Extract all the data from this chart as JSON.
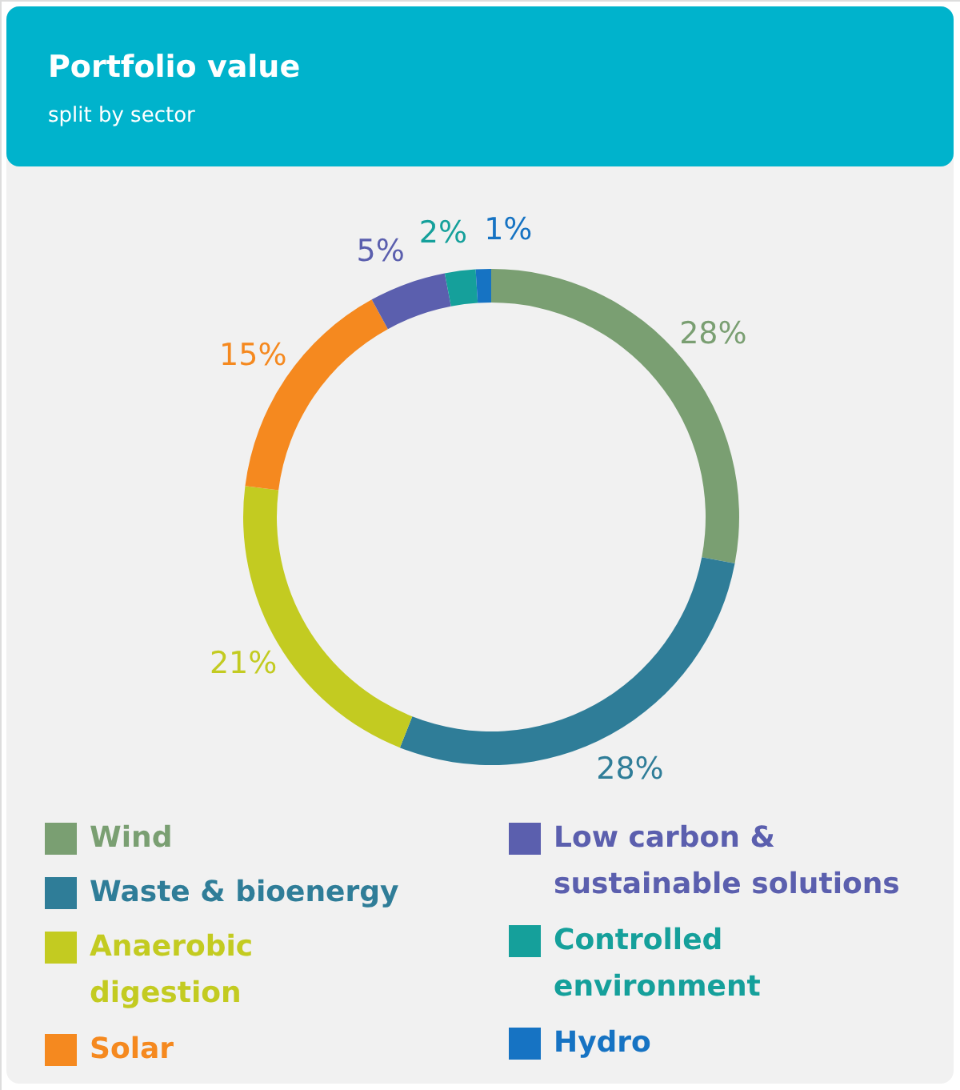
{
  "chart_data": {
    "type": "donut",
    "title": "Portfolio value",
    "subtitle": "split by sector",
    "categories": [
      "Wind",
      "Waste & bioenergy",
      "Anaerobic digestion",
      "Solar",
      "Low carbon & sustainable solutions",
      "Controlled environment",
      "Hydro"
    ],
    "values": [
      28,
      28,
      21,
      15,
      5,
      2,
      1
    ],
    "colors": [
      "#7a9f72",
      "#2f7d98",
      "#c3cb21",
      "#f5891f",
      "#5b5fae",
      "#15a09b",
      "#1673c3"
    ],
    "value_labels": [
      "28%",
      "28%",
      "21%",
      "15%",
      "5%",
      "2%",
      "1%"
    ],
    "legend": "bottom"
  }
}
